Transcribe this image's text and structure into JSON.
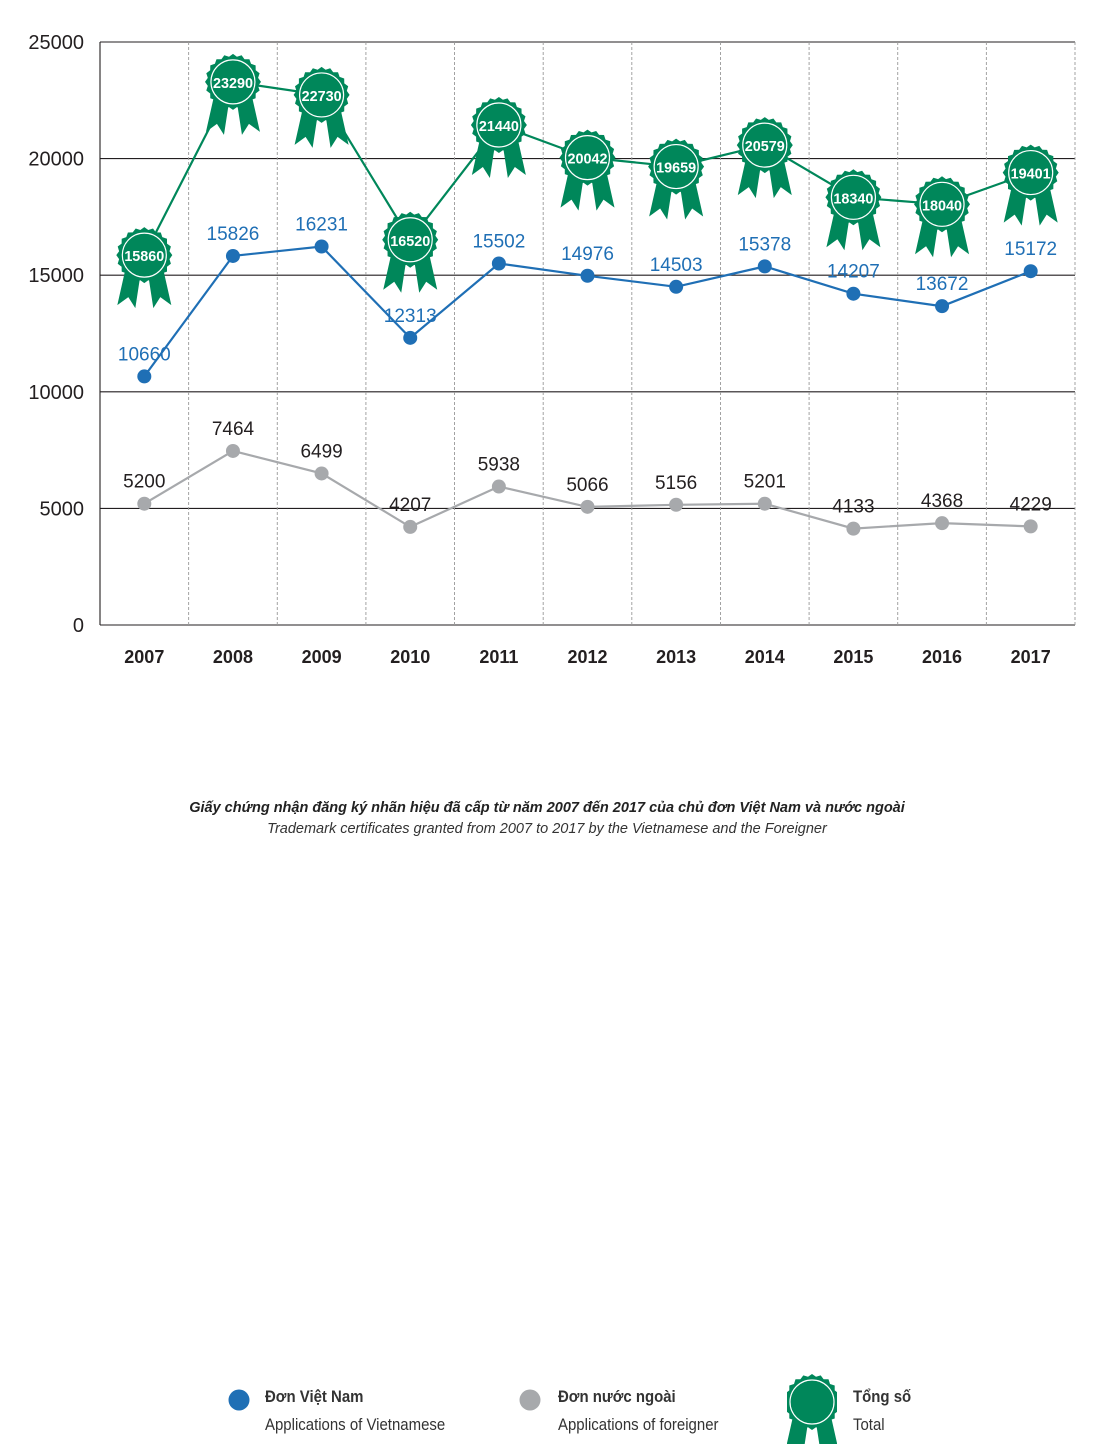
{
  "chart_data": {
    "type": "line",
    "x": [
      "2007",
      "2008",
      "2009",
      "2010",
      "2011",
      "2012",
      "2013",
      "2014",
      "2015",
      "2016",
      "2017"
    ],
    "ylim": [
      0,
      25000
    ],
    "yticks": [
      0,
      5000,
      10000,
      15000,
      20000,
      25000
    ],
    "grid": true,
    "legend_position": "bottom",
    "series": [
      {
        "key": "vn",
        "name": "Đơn Việt Nam",
        "name_en": "Applications of Vietnamese",
        "color": "#1f6fb5",
        "values": [
          10660,
          15826,
          16231,
          12313,
          15502,
          14976,
          14503,
          15378,
          14207,
          13672,
          15172
        ]
      },
      {
        "key": "foreign",
        "name": "Đơn nước ngoài",
        "name_en": "Applications of foreigner",
        "color": "#a7a9ac",
        "values": [
          5200,
          7464,
          6499,
          4207,
          5938,
          5066,
          5156,
          5201,
          4133,
          4368,
          4229
        ]
      },
      {
        "key": "total",
        "name": "Tổng số",
        "name_en": "Total",
        "color": "#00875a",
        "values": [
          15860,
          23290,
          22730,
          16520,
          21440,
          20042,
          19659,
          20579,
          18340,
          18040,
          19401
        ]
      }
    ],
    "caption": "Giấy chứng nhận đăng ký nhãn hiệu đã cấp từ năm 2007 đến 2017 của chủ đơn Việt Nam và nước ngoài",
    "caption_en": "Trademark certificates granted from 2007 to 2017 by the Vietnamese and the Foreigner"
  }
}
